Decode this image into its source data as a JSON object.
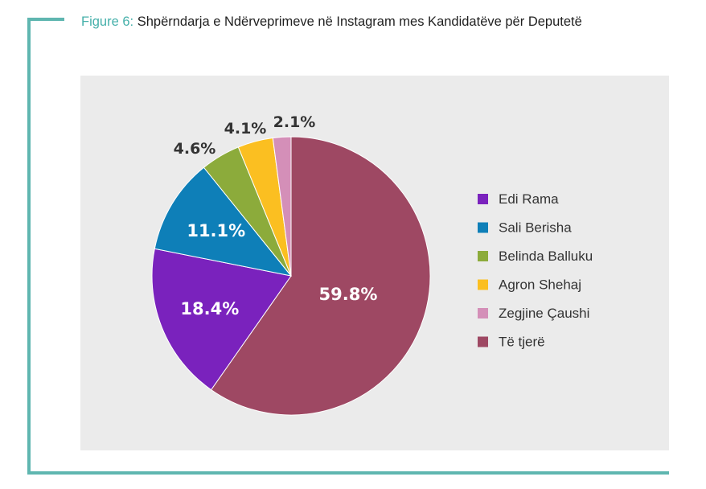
{
  "figure": {
    "prefix": "Figure 6:",
    "title": "Shpërndarja e Ndërveprimeve në Instagram mes Kandidatëve për Deputetë"
  },
  "colors": {
    "accent_frame": "#5fb6b0",
    "caption_prefix": "#45b0aa",
    "panel_background": "#ebebeb"
  },
  "chart_data": {
    "type": "pie",
    "title": "",
    "start": "12 o'clock",
    "direction": "clockwise",
    "legend_position": "right",
    "slices": [
      {
        "name": "Të tjerë",
        "value": 59.8,
        "label": "59.8%",
        "color": "#9e4863",
        "label_inside": true,
        "label_color": "#ffffff"
      },
      {
        "name": "Edi Rama",
        "value": 18.4,
        "label": "18.4%",
        "color": "#7a22bd",
        "label_inside": true,
        "label_color": "#ffffff"
      },
      {
        "name": "Sali Berisha",
        "value": 11.1,
        "label": "11.1%",
        "color": "#0e7fb8",
        "label_inside": true,
        "label_color": "#ffffff"
      },
      {
        "name": "Belinda Balluku",
        "value": 4.6,
        "label": "4.6%",
        "color": "#8cab3b",
        "label_inside": false,
        "label_color": "#333333"
      },
      {
        "name": "Agron Shehaj",
        "value": 4.1,
        "label": "4.1%",
        "color": "#fbbf21",
        "label_inside": false,
        "label_color": "#333333"
      },
      {
        "name": "Zegjine Çaushi",
        "value": 2.1,
        "label": "2.1%",
        "color": "#d48fb8",
        "label_inside": false,
        "label_color": "#333333"
      }
    ],
    "legend": [
      {
        "name": "Edi Rama",
        "color": "#7a22bd"
      },
      {
        "name": "Sali Berisha",
        "color": "#0e7fb8"
      },
      {
        "name": "Belinda Balluku",
        "color": "#8cab3b"
      },
      {
        "name": "Agron Shehaj",
        "color": "#fbbf21"
      },
      {
        "name": "Zegjine Çaushi",
        "color": "#d48fb8"
      },
      {
        "name": "Të tjerë",
        "color": "#9e4863"
      }
    ]
  }
}
